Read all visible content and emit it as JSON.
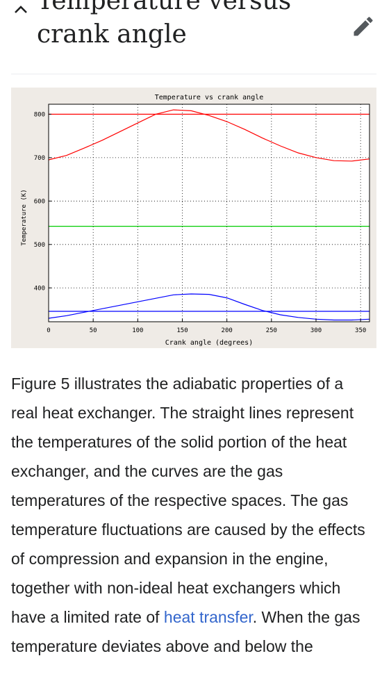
{
  "section": {
    "title": "Temperature versus crank angle",
    "collapse_icon": "chevron-up-icon",
    "edit_icon": "pencil-icon"
  },
  "chart_data": {
    "type": "line",
    "title": "Temperature vs crank angle",
    "xlabel": "Crank angle (degrees)",
    "ylabel": "Temperature (K)",
    "xlim": [
      0,
      360
    ],
    "ylim": [
      322,
      823
    ],
    "xticks": [
      0,
      50,
      100,
      150,
      200,
      250,
      300,
      350
    ],
    "yticks": [
      400,
      500,
      600,
      700,
      800
    ],
    "grid": true,
    "series": [
      {
        "color": "#ff0000",
        "style": "flat",
        "x": [
          0,
          360
        ],
        "y": [
          800,
          800
        ]
      },
      {
        "color": "#ff0000",
        "style": "curve",
        "x": [
          0,
          20,
          40,
          60,
          80,
          100,
          120,
          140,
          160,
          180,
          200,
          220,
          240,
          260,
          280,
          300,
          320,
          340,
          360
        ],
        "y": [
          695,
          705,
          722,
          740,
          760,
          780,
          800,
          810,
          808,
          797,
          783,
          765,
          745,
          727,
          711,
          700,
          693,
          692,
          697
        ]
      },
      {
        "color": "#00cc00",
        "style": "flat",
        "x": [
          0,
          360
        ],
        "y": [
          542,
          542
        ]
      },
      {
        "color": "#0000ff",
        "style": "curve",
        "x": [
          0,
          20,
          40,
          60,
          80,
          100,
          120,
          140,
          160,
          180,
          200,
          220,
          240,
          260,
          280,
          300,
          320,
          340,
          360
        ],
        "y": [
          330,
          336,
          344,
          352,
          360,
          368,
          376,
          384,
          386,
          385,
          377,
          362,
          348,
          338,
          332,
          328,
          326,
          326,
          328
        ]
      },
      {
        "color": "#0000ff",
        "style": "flat",
        "x": [
          0,
          360
        ],
        "y": [
          346,
          346
        ]
      }
    ]
  },
  "body": {
    "text_before_link": "Figure 5 illustrates the adiabatic properties of a real heat exchanger. The straight lines represent the temperatures of the solid portion of the heat exchanger, and the curves are the gas temperatures of the respective spaces. The gas temperature fluctuations are caused by the effects of compression and expansion in the engine, together with non-ideal heat exchangers which have a limited rate of ",
    "link_text": "heat transfer",
    "text_after_link": ". When the gas temperature deviates above and below the"
  }
}
